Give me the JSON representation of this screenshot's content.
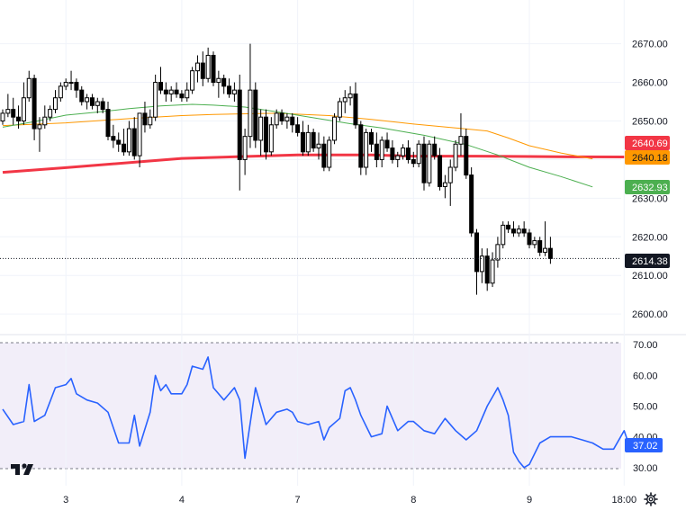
{
  "chart_data": [
    {
      "type": "candlestick",
      "title": "",
      "xlabel": "",
      "ylabel": "",
      "ylim": [
        2597,
        2679
      ],
      "price_ticks": [
        "2670.00",
        "2660.00",
        "2650.00",
        "2640.00",
        "2630.00",
        "2620.00",
        "2610.00",
        "2600.00"
      ],
      "price_tick_values": [
        2670,
        2660,
        2650,
        2640,
        2630,
        2620,
        2610,
        2600
      ],
      "x_tick_labels": [
        "3",
        "4",
        "7",
        "8",
        "9",
        "18:00"
      ],
      "x_tick_bar_index": [
        12,
        34,
        56,
        78,
        100,
        118
      ],
      "bar_count": 126,
      "ohlc": [
        [
          2650.0,
          2653.0,
          2649.0,
          2652.0
        ],
        [
          2652.0,
          2657.0,
          2651.0,
          2653.0
        ],
        [
          2653.0,
          2656.0,
          2649.0,
          2651.0
        ],
        [
          2651.0,
          2654.0,
          2648.0,
          2650.0
        ],
        [
          2650.0,
          2660.0,
          2649.0,
          2656.0
        ],
        [
          2656.0,
          2663.0,
          2655.0,
          2661.0
        ],
        [
          2661.0,
          2662.0,
          2645.0,
          2648.0
        ],
        [
          2648.0,
          2651.0,
          2642.0,
          2649.0
        ],
        [
          2649.0,
          2654.0,
          2648.0,
          2651.0
        ],
        [
          2651.0,
          2654.0,
          2650.0,
          2653.0
        ],
        [
          2653.0,
          2658.0,
          2652.0,
          2656.0
        ],
        [
          2656.0,
          2660.0,
          2655.0,
          2659.0
        ],
        [
          2659.0,
          2661.0,
          2658.0,
          2660.0
        ],
        [
          2660.0,
          2663.0,
          2658.0,
          2660.0
        ],
        [
          2660.0,
          2661.0,
          2656.0,
          2658.0
        ],
        [
          2658.0,
          2659.0,
          2654.0,
          2655.0
        ],
        [
          2655.0,
          2657.0,
          2653.0,
          2656.0
        ],
        [
          2656.0,
          2657.0,
          2653.0,
          2654.0
        ],
        [
          2654.0,
          2656.0,
          2652.0,
          2655.0
        ],
        [
          2655.0,
          2656.0,
          2652.0,
          2653.0
        ],
        [
          2653.0,
          2655.0,
          2645.0,
          2646.0
        ],
        [
          2646.0,
          2649.0,
          2643.0,
          2645.0
        ],
        [
          2645.0,
          2647.0,
          2642.0,
          2644.0
        ],
        [
          2644.0,
          2648.0,
          2641.0,
          2642.0
        ],
        [
          2642.0,
          2650.0,
          2641.0,
          2648.0
        ],
        [
          2648.0,
          2651.0,
          2640.0,
          2641.0
        ],
        [
          2641.0,
          2652.0,
          2638.0,
          2652.0
        ],
        [
          2652.0,
          2655.0,
          2647.0,
          2649.0
        ],
        [
          2649.0,
          2653.0,
          2648.0,
          2651.0
        ],
        [
          2651.0,
          2662.0,
          2650.0,
          2660.0
        ],
        [
          2660.0,
          2664.0,
          2657.0,
          2658.0
        ],
        [
          2658.0,
          2660.0,
          2655.0,
          2657.0
        ],
        [
          2657.0,
          2659.0,
          2655.0,
          2658.0
        ],
        [
          2658.0,
          2660.0,
          2656.0,
          2657.0
        ],
        [
          2657.0,
          2658.0,
          2655.0,
          2656.0
        ],
        [
          2656.0,
          2660.0,
          2655.0,
          2658.0
        ],
        [
          2658.0,
          2664.0,
          2657.0,
          2663.0
        ],
        [
          2663.0,
          2667.0,
          2660.0,
          2665.0
        ],
        [
          2665.0,
          2668.0,
          2659.0,
          2661.0
        ],
        [
          2661.0,
          2669.0,
          2660.0,
          2667.0
        ],
        [
          2667.0,
          2668.0,
          2659.0,
          2660.0
        ],
        [
          2660.0,
          2663.0,
          2656.0,
          2661.0
        ],
        [
          2661.0,
          2662.0,
          2657.0,
          2659.0
        ],
        [
          2659.0,
          2661.0,
          2656.0,
          2657.0
        ],
        [
          2657.0,
          2660.0,
          2655.0,
          2658.0
        ],
        [
          2658.0,
          2662.0,
          2632.0,
          2640.0
        ],
        [
          2640.0,
          2648.0,
          2636.0,
          2646.0
        ],
        [
          2646.0,
          2670.0,
          2643.0,
          2658.0
        ],
        [
          2658.0,
          2660.0,
          2643.0,
          2645.0
        ],
        [
          2645.0,
          2653.0,
          2641.0,
          2651.0
        ],
        [
          2651.0,
          2653.0,
          2640.0,
          2642.0
        ],
        [
          2642.0,
          2651.0,
          2641.0,
          2649.0
        ],
        [
          2649.0,
          2653.0,
          2648.0,
          2652.0
        ],
        [
          2652.0,
          2653.0,
          2649.0,
          2650.0
        ],
        [
          2650.0,
          2652.0,
          2648.0,
          2651.0
        ],
        [
          2651.0,
          2652.0,
          2647.0,
          2649.0
        ],
        [
          2649.0,
          2651.0,
          2646.0,
          2647.0
        ],
        [
          2647.0,
          2650.0,
          2641.0,
          2642.0
        ],
        [
          2642.0,
          2649.0,
          2641.0,
          2647.0
        ],
        [
          2647.0,
          2648.0,
          2642.0,
          2643.0
        ],
        [
          2643.0,
          2647.0,
          2640.0,
          2644.0
        ],
        [
          2644.0,
          2646.0,
          2637.0,
          2638.0
        ],
        [
          2638.0,
          2646.0,
          2637.0,
          2645.0
        ],
        [
          2645.0,
          2652.0,
          2644.0,
          2651.0
        ],
        [
          2651.0,
          2656.0,
          2650.0,
          2655.0
        ],
        [
          2655.0,
          2658.0,
          2652.0,
          2656.0
        ],
        [
          2656.0,
          2659.0,
          2654.0,
          2657.0
        ],
        [
          2657.0,
          2660.0,
          2648.0,
          2649.0
        ],
        [
          2649.0,
          2650.0,
          2636.0,
          2638.0
        ],
        [
          2638.0,
          2648.0,
          2636.0,
          2647.0
        ],
        [
          2647.0,
          2648.0,
          2642.0,
          2644.0
        ],
        [
          2644.0,
          2647.0,
          2638.0,
          2640.0
        ],
        [
          2640.0,
          2646.0,
          2638.0,
          2645.0
        ],
        [
          2645.0,
          2647.0,
          2642.0,
          2643.0
        ],
        [
          2643.0,
          2645.0,
          2639.0,
          2640.0
        ],
        [
          2640.0,
          2642.0,
          2638.0,
          2641.0
        ],
        [
          2641.0,
          2644.0,
          2640.0,
          2643.0
        ],
        [
          2643.0,
          2645.0,
          2639.0,
          2640.0
        ],
        [
          2640.0,
          2642.0,
          2638.0,
          2639.0
        ],
        [
          2639.0,
          2645.0,
          2638.0,
          2644.0
        ],
        [
          2644.0,
          2646.0,
          2632.0,
          2634.0
        ],
        [
          2634.0,
          2645.0,
          2633.0,
          2644.0
        ],
        [
          2644.0,
          2646.0,
          2640.0,
          2641.0
        ],
        [
          2641.0,
          2643.0,
          2632.0,
          2633.0
        ],
        [
          2633.0,
          2636.0,
          2630.0,
          2634.0
        ],
        [
          2634.0,
          2640.0,
          2628.0,
          2638.0
        ],
        [
          2638.0,
          2645.0,
          2637.0,
          2644.0
        ],
        [
          2644.0,
          2652.0,
          2641.0,
          2646.0
        ],
        [
          2646.0,
          2648.0,
          2635.0,
          2636.0
        ],
        [
          2636.0,
          2638.0,
          2620.0,
          2621.0
        ],
        [
          2621.0,
          2622.0,
          2605.0,
          2611.0
        ],
        [
          2611.0,
          2617.0,
          2608.0,
          2615.0
        ],
        [
          2615.0,
          2617.0,
          2606.0,
          2608.0
        ],
        [
          2608.0,
          2616.0,
          2607.0,
          2614.0
        ],
        [
          2614.0,
          2620.0,
          2612.0,
          2618.0
        ],
        [
          2618.0,
          2624.0,
          2617.0,
          2623.0
        ],
        [
          2623.0,
          2624.0,
          2621.0,
          2622.0
        ],
        [
          2622.0,
          2624.0,
          2620.0,
          2621.0
        ],
        [
          2621.0,
          2623.0,
          2620.0,
          2622.0
        ],
        [
          2622.0,
          2624.0,
          2620.0,
          2621.0
        ],
        [
          2621.0,
          2622.0,
          2617.0,
          2618.0
        ],
        [
          2618.0,
          2620.0,
          2617.0,
          2619.0
        ],
        [
          2619.0,
          2620.0,
          2615.0,
          2616.0
        ],
        [
          2616.0,
          2624.0,
          2615.0,
          2617.0
        ],
        [
          2617.0,
          2620.0,
          2613.0,
          2614.38
        ]
      ],
      "moving_averages": [
        {
          "color": "#f23645",
          "points": [
            [
              0,
              2636.7
            ],
            [
              12,
              2637.9
            ],
            [
              34,
              2640.3
            ],
            [
              56,
              2641.2
            ],
            [
              70,
              2641.2
            ],
            [
              78,
              2640.9
            ],
            [
              90,
              2640.9
            ],
            [
              100,
              2640.8
            ],
            [
              110,
              2640.7
            ],
            [
              118,
              2640.69
            ]
          ]
        },
        {
          "color": "#ff9800",
          "points": [
            [
              0,
              2648.8
            ],
            [
              12,
              2649.5
            ],
            [
              24,
              2650.6
            ],
            [
              34,
              2651.4
            ],
            [
              40,
              2651.7
            ],
            [
              52,
              2652.0
            ],
            [
              62,
              2651.4
            ],
            [
              70,
              2650.4
            ],
            [
              78,
              2649.2
            ],
            [
              86,
              2648.2
            ],
            [
              92,
              2647.4
            ],
            [
              96,
              2645.6
            ],
            [
              100,
              2643.6
            ],
            [
              106,
              2641.7
            ],
            [
              112,
              2640.18
            ]
          ]
        },
        {
          "color": "#4caf50",
          "points": [
            [
              0,
              2648.4
            ],
            [
              6,
              2649.8
            ],
            [
              12,
              2651.5
            ],
            [
              18,
              2652.3
            ],
            [
              24,
              2653.2
            ],
            [
              30,
              2653.9
            ],
            [
              36,
              2654.3
            ],
            [
              40,
              2654.1
            ],
            [
              46,
              2653.6
            ],
            [
              52,
              2652.4
            ],
            [
              60,
              2650.6
            ],
            [
              66,
              2649.3
            ],
            [
              72,
              2648.2
            ],
            [
              80,
              2646.3
            ],
            [
              88,
              2643.9
            ],
            [
              94,
              2641.2
            ],
            [
              100,
              2638.0
            ],
            [
              106,
              2635.6
            ],
            [
              112,
              2632.93
            ]
          ]
        }
      ],
      "price_tags": [
        {
          "label": "2640.69",
          "value": 2640.69,
          "bg": "#f23645",
          "fg": "#ffffff"
        },
        {
          "label": "2640.18",
          "value": 2640.18,
          "bg": "#ff9800",
          "fg": "#131722"
        },
        {
          "label": "2632.93",
          "value": 2632.93,
          "bg": "#4caf50",
          "fg": "#ffffff"
        },
        {
          "label": "2614.38",
          "value": 2614.38,
          "bg": "#131722",
          "fg": "#ffffff"
        }
      ],
      "last_price": 2614.38,
      "colors": {
        "up": "#ffffff",
        "down": "#000000",
        "wick": "#000000",
        "grid": "#f0f3fa",
        "text": "#131722"
      }
    },
    {
      "type": "line",
      "title": "",
      "ylim": [
        27,
        73
      ],
      "ticks": [
        "70.00",
        "60.00",
        "50.00",
        "40.00",
        "30.00"
      ],
      "tick_values": [
        70,
        60,
        50,
        40,
        30
      ],
      "band": [
        30,
        70
      ],
      "last_value_label": "37.02",
      "series": [
        {
          "color": "#2962ff",
          "points": [
            [
              0,
              49
            ],
            [
              2,
              44
            ],
            [
              4,
              45
            ],
            [
              5,
              57
            ],
            [
              6,
              45
            ],
            [
              8,
              47
            ],
            [
              10,
              56
            ],
            [
              12,
              57
            ],
            [
              13,
              59
            ],
            [
              14,
              54
            ],
            [
              16,
              52
            ],
            [
              18,
              51
            ],
            [
              20,
              48
            ],
            [
              22,
              38
            ],
            [
              24,
              38
            ],
            [
              25,
              47
            ],
            [
              26,
              37
            ],
            [
              28,
              48
            ],
            [
              29,
              60
            ],
            [
              30,
              55
            ],
            [
              31,
              57
            ],
            [
              32,
              54
            ],
            [
              34,
              54
            ],
            [
              35,
              57
            ],
            [
              36,
              63
            ],
            [
              38,
              62
            ],
            [
              39,
              66
            ],
            [
              40,
              56
            ],
            [
              42,
              52
            ],
            [
              44,
              56
            ],
            [
              45,
              52
            ],
            [
              46,
              33
            ],
            [
              48,
              56
            ],
            [
              50,
              44
            ],
            [
              52,
              48
            ],
            [
              54,
              49
            ],
            [
              55,
              48
            ],
            [
              56,
              45
            ],
            [
              58,
              44
            ],
            [
              60,
              45
            ],
            [
              61,
              39
            ],
            [
              62,
              43
            ],
            [
              64,
              46
            ],
            [
              65,
              55
            ],
            [
              66,
              56
            ],
            [
              67,
              52
            ],
            [
              68,
              47
            ],
            [
              70,
              40
            ],
            [
              72,
              41
            ],
            [
              73,
              50
            ],
            [
              75,
              42
            ],
            [
              77,
              45
            ],
            [
              78,
              45
            ],
            [
              80,
              42
            ],
            [
              82,
              41
            ],
            [
              84,
              46
            ],
            [
              86,
              42
            ],
            [
              88,
              39
            ],
            [
              90,
              42
            ],
            [
              92,
              50
            ],
            [
              94,
              56
            ],
            [
              95,
              52
            ],
            [
              96,
              47
            ],
            [
              97,
              35
            ],
            [
              98,
              32
            ],
            [
              99,
              30
            ],
            [
              100,
              31
            ],
            [
              102,
              38
            ],
            [
              104,
              40
            ],
            [
              106,
              40
            ],
            [
              108,
              40
            ],
            [
              110,
              39
            ],
            [
              112,
              38
            ],
            [
              114,
              36
            ],
            [
              116,
              36
            ],
            [
              118,
              42
            ],
            [
              119,
              37.02
            ]
          ]
        }
      ]
    }
  ]
}
